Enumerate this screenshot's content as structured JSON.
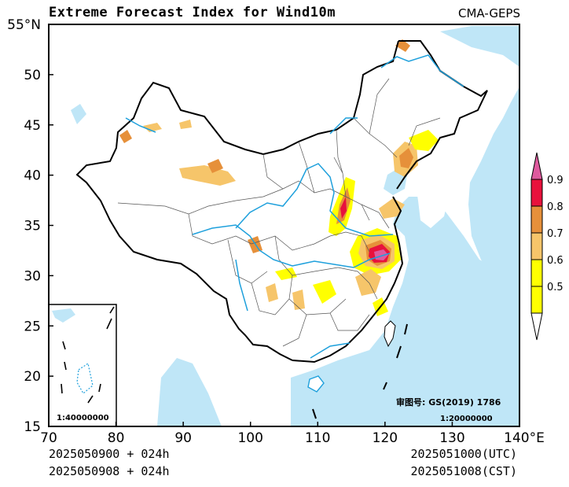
{
  "title": "Extreme Forecast Index for Wind10m",
  "source": "CMA-GEPS",
  "x_ticks": [
    "70",
    "80",
    "90",
    "100",
    "110",
    "120",
    "130",
    "140°E"
  ],
  "y_ticks": [
    "55°N",
    "50",
    "45",
    "40",
    "35",
    "30",
    "25",
    "20",
    "15"
  ],
  "inset_scale": "1:40000000",
  "map_approval": "审图号: GS(2019) 1786",
  "map_scale": "1:20000000",
  "footer": {
    "init_cst_line": "2025050900 + 024h",
    "init_line2": "2025050908 + 024h",
    "valid_utc": "2025051000(UTC)",
    "valid_cst": "2025051008(CST)"
  },
  "colorbar": {
    "labels": [
      "0.5",
      "0.6",
      "0.7",
      "0.8",
      "0.9"
    ],
    "colors": [
      "#ffff00",
      "#f6c56a",
      "#e6903a",
      "#e8123c",
      "#de5a9e"
    ]
  },
  "map_colors": {
    "land": "#ffffff",
    "sea": "#bfe6f7",
    "river": "#1ea0dc",
    "border": "#000000",
    "province": "#555555"
  }
}
